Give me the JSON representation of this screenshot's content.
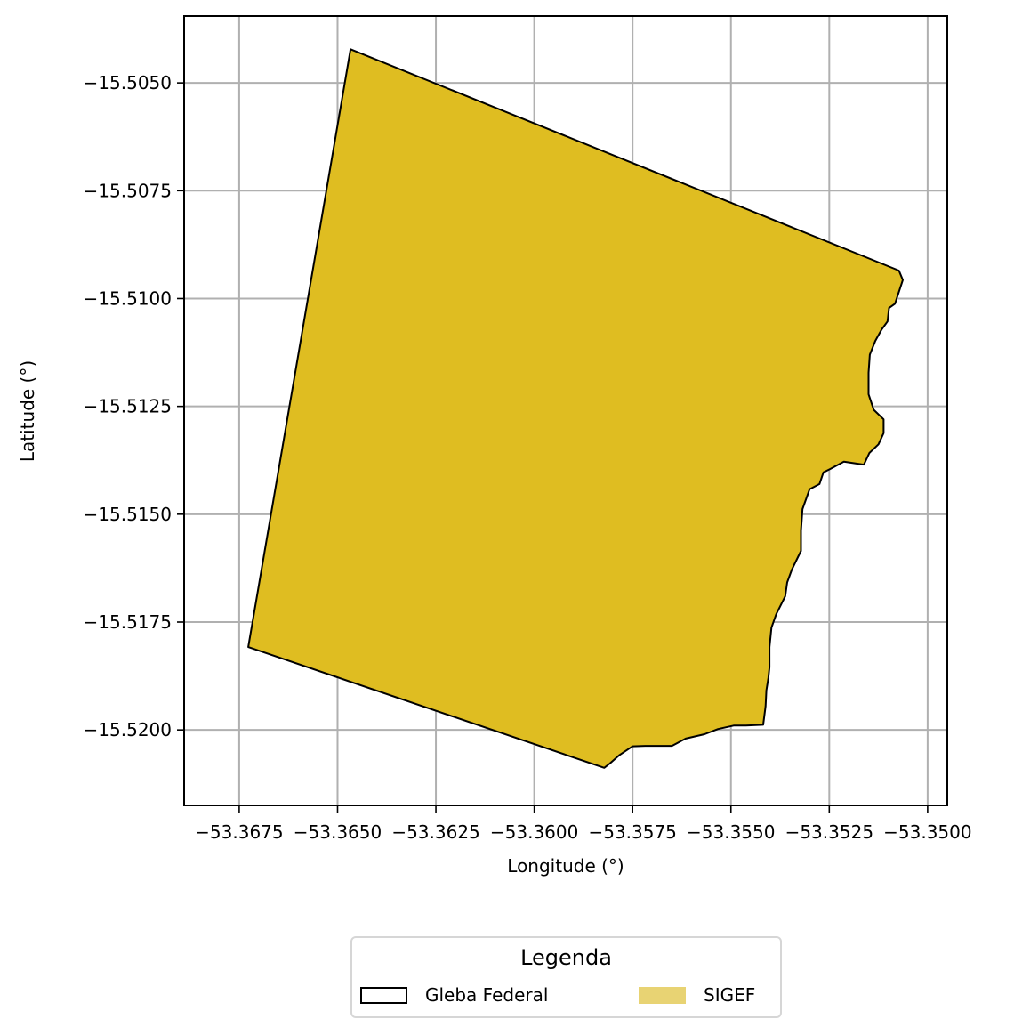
{
  "chart_data": {
    "type": "map",
    "xlabel": "Longitude (°)",
    "ylabel": "Latitude (°)",
    "xlim": [
      -53.3689,
      -53.3495
    ],
    "ylim": [
      -15.52175,
      -15.50345
    ],
    "x_ticks": [
      -53.3675,
      -53.365,
      -53.3625,
      -53.36,
      -53.3575,
      -53.355,
      -53.3525,
      -53.35
    ],
    "x_tick_labels": [
      "−53.3675",
      "−53.3650",
      "−53.3625",
      "−53.3600",
      "−53.3575",
      "−53.3550",
      "−53.3525",
      "−53.3500"
    ],
    "y_ticks": [
      -15.505,
      -15.5075,
      -15.51,
      -15.5125,
      -15.515,
      -15.5175,
      -15.52
    ],
    "y_tick_labels": [
      "−15.5050",
      "−15.5075",
      "−15.5100",
      "−15.5125",
      "−15.5150",
      "−15.5175",
      "−15.5200"
    ],
    "grid": true,
    "legend_placement": "bottom-center",
    "colors": {
      "sigef_fill": "#dfbd21",
      "sigef_legend": "#e8d373",
      "outline": "#000000",
      "grid": "#b0b0b0"
    },
    "polygon": [
      [
        -53.36467,
        -15.50422
      ],
      [
        -53.35073,
        -15.50935
      ],
      [
        -53.35063,
        -15.50957
      ],
      [
        -53.35083,
        -15.51012
      ],
      [
        -53.35098,
        -15.51022
      ],
      [
        -53.35102,
        -15.51053
      ],
      [
        -53.35117,
        -15.51072
      ],
      [
        -53.35133,
        -15.51098
      ],
      [
        -53.35147,
        -15.5113
      ],
      [
        -53.3515,
        -15.51172
      ],
      [
        -53.3515,
        -15.51222
      ],
      [
        -53.35137,
        -15.51258
      ],
      [
        -53.35112,
        -15.5128
      ],
      [
        -53.35112,
        -15.51312
      ],
      [
        -53.35125,
        -15.51338
      ],
      [
        -53.35148,
        -15.51358
      ],
      [
        -53.35162,
        -15.51385
      ],
      [
        -53.35213,
        -15.51378
      ],
      [
        -53.35247,
        -15.51395
      ],
      [
        -53.35265,
        -15.51403
      ],
      [
        -53.35275,
        -15.5143
      ],
      [
        -53.353,
        -15.51442
      ],
      [
        -53.35318,
        -15.51488
      ],
      [
        -53.35322,
        -15.51538
      ],
      [
        -53.35322,
        -15.51585
      ],
      [
        -53.35345,
        -15.51628
      ],
      [
        -53.35357,
        -15.51658
      ],
      [
        -53.35362,
        -15.5169
      ],
      [
        -53.35385,
        -15.51732
      ],
      [
        -53.35397,
        -15.51763
      ],
      [
        -53.35402,
        -15.51808
      ],
      [
        -53.35402,
        -15.51855
      ],
      [
        -53.35405,
        -15.5188
      ],
      [
        -53.3541,
        -15.51908
      ],
      [
        -53.35412,
        -15.51945
      ],
      [
        -53.35418,
        -15.51988
      ],
      [
        -53.35462,
        -15.5199
      ],
      [
        -53.35493,
        -15.5199
      ],
      [
        -53.35533,
        -15.51998
      ],
      [
        -53.35567,
        -15.5201
      ],
      [
        -53.35615,
        -15.5202
      ],
      [
        -53.3565,
        -15.52037
      ],
      [
        -53.35718,
        -15.52037
      ],
      [
        -53.3575,
        -15.52038
      ],
      [
        -53.35783,
        -15.52058
      ],
      [
        -53.35808,
        -15.52078
      ],
      [
        -53.35822,
        -15.52088
      ],
      [
        -53.36727,
        -15.51808
      ]
    ]
  },
  "legend": {
    "title": "Legenda",
    "items": [
      {
        "label": "Gleba Federal",
        "style": "outline"
      },
      {
        "label": "SIGEF",
        "style": "fill"
      }
    ]
  }
}
